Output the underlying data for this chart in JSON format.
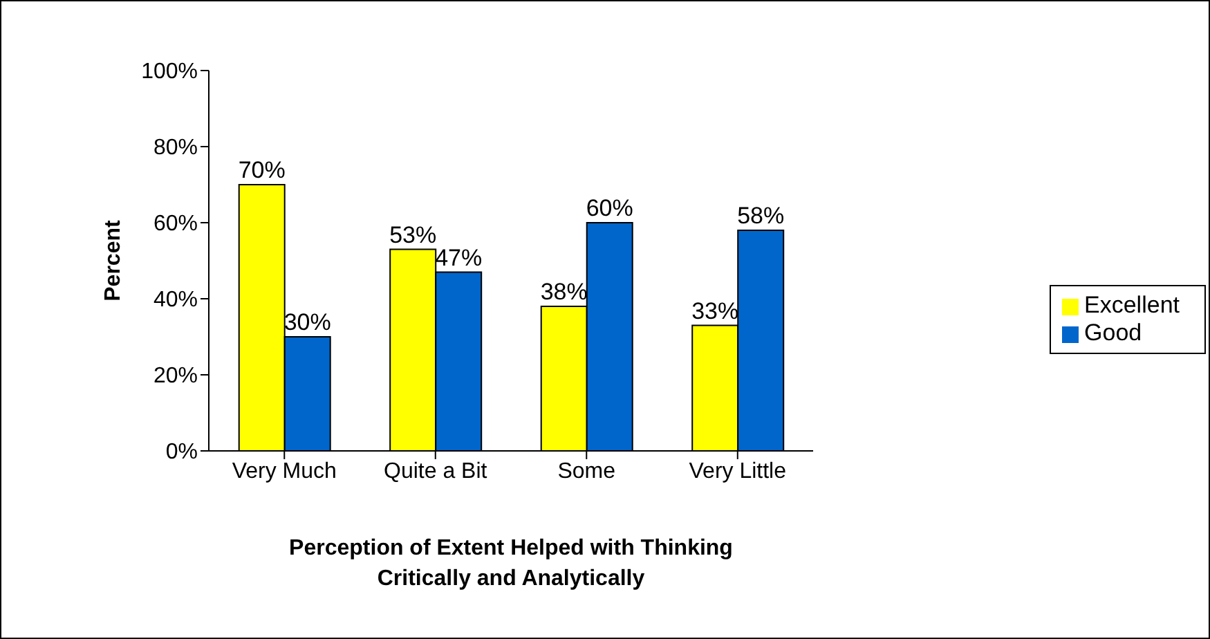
{
  "chart_data": {
    "type": "bar",
    "xlabel": "Perception of Extent Helped with Thinking Critically and Analytically",
    "ylabel": "Percent",
    "categories": [
      "Very Much",
      "Quite a Bit",
      "Some",
      "Very Little"
    ],
    "series": [
      {
        "name": "Excellent",
        "color": "#ffff00",
        "values": [
          70,
          53,
          38,
          33
        ],
        "value_labels": [
          "70%",
          "53%",
          "38%",
          "33%"
        ]
      },
      {
        "name": "Good",
        "color": "#0066cc",
        "values": [
          30,
          47,
          60,
          58
        ],
        "value_labels": [
          "30%",
          "47%",
          "60%",
          "58%"
        ]
      }
    ],
    "ylim": [
      0,
      100
    ],
    "yticks": [
      {
        "value": 0,
        "label": "0%"
      },
      {
        "value": 20,
        "label": "20%"
      },
      {
        "value": 40,
        "label": "40%"
      },
      {
        "value": 60,
        "label": "60%"
      },
      {
        "value": 80,
        "label": "80%"
      },
      {
        "value": 100,
        "label": "100%"
      }
    ],
    "grid": false,
    "legend": "right"
  }
}
